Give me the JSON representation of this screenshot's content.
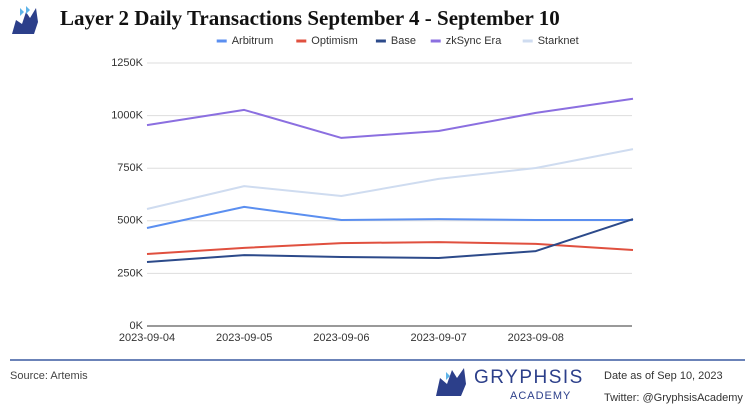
{
  "chart_data": {
    "type": "line",
    "title": "Layer 2 Daily Transactions September 4 - September 10",
    "categories": [
      "2023-09-04",
      "2023-09-05",
      "2023-09-06",
      "2023-09-07",
      "2023-09-08",
      null
    ],
    "series": [
      {
        "name": "Arbitrum",
        "color": "#5b8ff0",
        "values": [
          466,
          566,
          504,
          508,
          504,
          504
        ]
      },
      {
        "name": "Optimism",
        "color": "#e0503f",
        "values": [
          342,
          371,
          394,
          399,
          390,
          361
        ]
      },
      {
        "name": "Base",
        "color": "#2c4a8a",
        "values": [
          304,
          337,
          328,
          323,
          356,
          508
        ]
      },
      {
        "name": "zkSync Era",
        "color": "#8b6fe0",
        "values": [
          955,
          1027,
          894,
          927,
          1013,
          1080
        ]
      },
      {
        "name": "Starknet",
        "color": "#cfdcf0",
        "values": [
          556,
          665,
          618,
          699,
          751,
          841
        ]
      }
    ],
    "ylim": [
      0,
      1250
    ],
    "yticks": [
      {
        "value": 0,
        "label": "0K"
      },
      {
        "value": 250,
        "label": "250K"
      },
      {
        "value": 500,
        "label": "500K"
      },
      {
        "value": 750,
        "label": "750K"
      },
      {
        "value": 1000,
        "label": "1000K"
      },
      {
        "value": 1250,
        "label": "1250K"
      }
    ],
    "grid": true,
    "legend": "top"
  },
  "footer": {
    "source": "Source: Artemis",
    "brand": "GRYPHSIS",
    "brand_sub": "ACADEMY",
    "date": "Date as of  Sep 10, 2023",
    "twitter": "Twitter: @GryphsisAcademy"
  }
}
